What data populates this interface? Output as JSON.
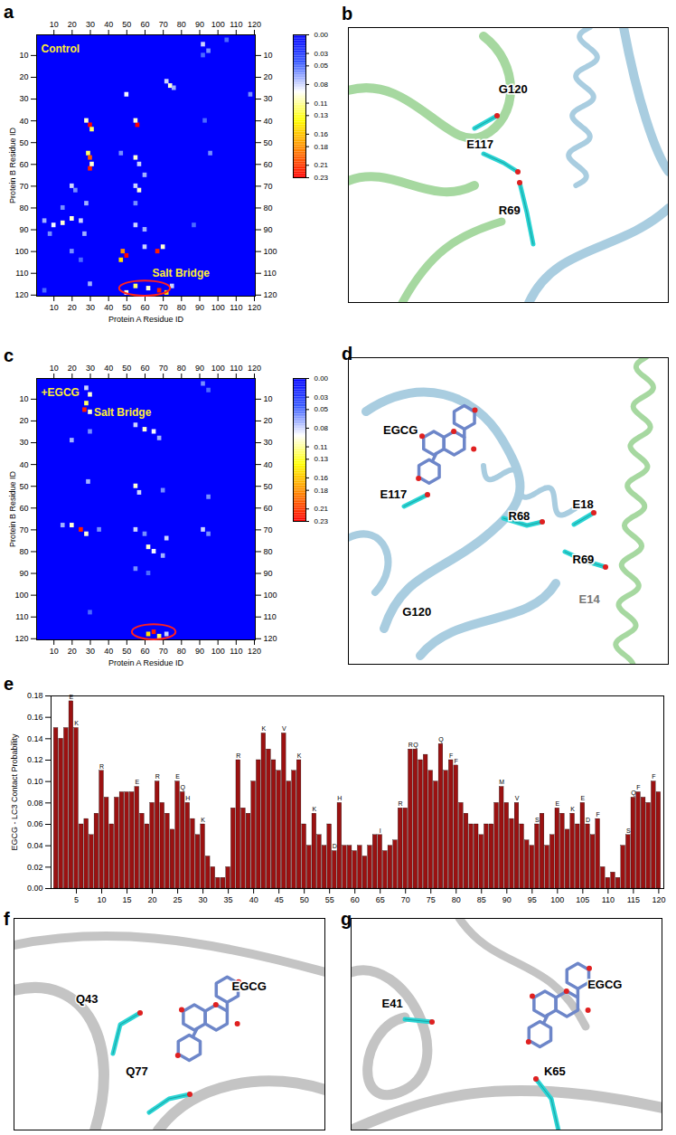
{
  "chart_data": [
    {
      "type": "heatmap",
      "panel": "a",
      "x_label": "Protein A Residue ID",
      "y_label": "Protein B Residue ID",
      "xlim": [
        0.5,
        120.5
      ],
      "ylim": [
        0.5,
        120.5
      ],
      "xticks": [
        10,
        20,
        30,
        40,
        50,
        60,
        70,
        80,
        90,
        100,
        110,
        120
      ],
      "yticks": [
        10,
        20,
        30,
        40,
        50,
        60,
        70,
        80,
        90,
        100,
        110,
        120
      ],
      "cells": [
        [
          92,
          5,
          0.08
        ],
        [
          95,
          8,
          0.06
        ],
        [
          92,
          10,
          0.05
        ],
        [
          105,
          3,
          0.05
        ],
        [
          50,
          28,
          0.09
        ],
        [
          72,
          22,
          0.08
        ],
        [
          74,
          24,
          0.1
        ],
        [
          76,
          25,
          0.07
        ],
        [
          118,
          28,
          0.06
        ],
        [
          30,
          42,
          0.23
        ],
        [
          28,
          40,
          0.1
        ],
        [
          31,
          44,
          0.12
        ],
        [
          56,
          42,
          0.23
        ],
        [
          55,
          40,
          0.1
        ],
        [
          93,
          40,
          0.05
        ],
        [
          29,
          55,
          0.12
        ],
        [
          30,
          57,
          0.2
        ],
        [
          30,
          62,
          0.22
        ],
        [
          31,
          60,
          0.1
        ],
        [
          47,
          55,
          0.06
        ],
        [
          55,
          57,
          0.1
        ],
        [
          57,
          60,
          0.08
        ],
        [
          96,
          55,
          0.06
        ],
        [
          60,
          65,
          0.07
        ],
        [
          20,
          70,
          0.08
        ],
        [
          22,
          72,
          0.06
        ],
        [
          55,
          70,
          0.08
        ],
        [
          57,
          72,
          0.1
        ],
        [
          28,
          78,
          0.07
        ],
        [
          55,
          78,
          0.06
        ],
        [
          15,
          80,
          0.06
        ],
        [
          5,
          86,
          0.07
        ],
        [
          10,
          88,
          0.09
        ],
        [
          15,
          87,
          0.1
        ],
        [
          20,
          85,
          0.1
        ],
        [
          25,
          86,
          0.08
        ],
        [
          8,
          92,
          0.06
        ],
        [
          27,
          92,
          0.07
        ],
        [
          55,
          88,
          0.08
        ],
        [
          60,
          90,
          0.07
        ],
        [
          87,
          88,
          0.05
        ],
        [
          48,
          100,
          0.18
        ],
        [
          50,
          102,
          0.23
        ],
        [
          47,
          104,
          0.15
        ],
        [
          60,
          98,
          0.08
        ],
        [
          67,
          100,
          0.22
        ],
        [
          70,
          98,
          0.1
        ],
        [
          20,
          100,
          0.06
        ],
        [
          25,
          104,
          0.05
        ],
        [
          55,
          116,
          0.12
        ],
        [
          62,
          117,
          0.1
        ],
        [
          68,
          118,
          0.22
        ],
        [
          72,
          119,
          0.15
        ],
        [
          50,
          119,
          0.1
        ],
        [
          75,
          116,
          0.08
        ],
        [
          30,
          115,
          0.07
        ],
        [
          5,
          118,
          0.05
        ]
      ],
      "colorbar": {
        "range": [
          0,
          0.23
        ],
        "ticks": [
          {
            "value": 0,
            "label": "0.00"
          },
          0.03,
          0.05,
          0.08,
          0.11,
          0.13,
          0.16,
          0.18,
          0.21,
          0.23
        ],
        "colors": [
          "#0000ff",
          "#3a5cff",
          "#ffffff",
          "#ffff00",
          "#ff8800",
          "#ff0000"
        ]
      },
      "annotations": [
        {
          "text": "Control",
          "x": 3,
          "y": 7
        },
        {
          "text": "Salt Bridge",
          "x": 64,
          "y": 110
        }
      ],
      "highlights": [
        {
          "x": 60,
          "y": 117,
          "rx": 14,
          "ry": 3.5
        }
      ]
    },
    {
      "type": "heatmap",
      "panel": "c",
      "x_label": "Protein A Residue ID",
      "y_label": "Protein B Residue ID",
      "xlim": [
        0.5,
        120.5
      ],
      "ylim": [
        0.5,
        120.5
      ],
      "xticks": [
        10,
        20,
        30,
        40,
        50,
        60,
        70,
        80,
        90,
        100,
        110,
        120
      ],
      "yticks": [
        10,
        20,
        30,
        40,
        50,
        60,
        70,
        80,
        90,
        100,
        110,
        120
      ],
      "cells": [
        [
          28,
          5,
          0.08
        ],
        [
          30,
          8,
          0.1
        ],
        [
          28,
          12,
          0.12
        ],
        [
          27,
          15,
          0.22
        ],
        [
          30,
          16,
          0.1
        ],
        [
          92,
          3,
          0.06
        ],
        [
          95,
          6,
          0.05
        ],
        [
          55,
          22,
          0.08
        ],
        [
          60,
          24,
          0.1
        ],
        [
          65,
          25,
          0.09
        ],
        [
          68,
          28,
          0.07
        ],
        [
          30,
          25,
          0.06
        ],
        [
          20,
          29,
          0.07
        ],
        [
          29,
          48,
          0.07
        ],
        [
          55,
          50,
          0.1
        ],
        [
          57,
          53,
          0.08
        ],
        [
          95,
          55,
          0.06
        ],
        [
          70,
          52,
          0.06
        ],
        [
          15,
          68,
          0.07
        ],
        [
          20,
          68,
          0.1
        ],
        [
          25,
          70,
          0.22
        ],
        [
          28,
          72,
          0.1
        ],
        [
          35,
          70,
          0.06
        ],
        [
          55,
          70,
          0.08
        ],
        [
          60,
          72,
          0.06
        ],
        [
          72,
          74,
          0.08
        ],
        [
          62,
          78,
          0.1
        ],
        [
          65,
          80,
          0.09
        ],
        [
          70,
          82,
          0.07
        ],
        [
          92,
          70,
          0.08
        ],
        [
          95,
          72,
          0.06
        ],
        [
          55,
          88,
          0.06
        ],
        [
          62,
          90,
          0.05
        ],
        [
          30,
          108,
          0.05
        ],
        [
          62,
          118,
          0.15
        ],
        [
          65,
          117,
          0.22
        ],
        [
          68,
          119,
          0.12
        ],
        [
          72,
          118,
          0.08
        ]
      ],
      "colorbar": {
        "range": [
          0,
          0.23
        ],
        "ticks": [
          {
            "value": 0,
            "label": "0.00"
          },
          0.03,
          0.05,
          0.08,
          0.11,
          0.13,
          0.16,
          0.18,
          0.21,
          0.23
        ],
        "colors": [
          "#0000ff",
          "#3a5cff",
          "#ffffff",
          "#ffff00",
          "#ff8800",
          "#ff0000"
        ]
      },
      "annotations": [
        {
          "text": "+EGCG",
          "x": 3,
          "y": 7
        },
        {
          "text": "Salt Bridge",
          "x": 32,
          "y": 16
        }
      ],
      "highlights": [
        {
          "x": 65,
          "y": 117,
          "rx": 12,
          "ry": 3.5
        }
      ]
    },
    {
      "type": "bar",
      "panel": "e",
      "y_label": "EGCG - LC3 Contact Probability",
      "color": "#9b1111",
      "x": [
        1,
        2,
        3,
        4,
        5,
        6,
        7,
        8,
        9,
        10,
        11,
        12,
        13,
        14,
        15,
        16,
        17,
        18,
        19,
        20,
        21,
        22,
        23,
        24,
        25,
        26,
        27,
        28,
        29,
        30,
        31,
        32,
        33,
        34,
        35,
        36,
        37,
        38,
        39,
        40,
        41,
        42,
        43,
        44,
        45,
        46,
        47,
        48,
        49,
        50,
        51,
        52,
        53,
        54,
        55,
        56,
        57,
        58,
        59,
        60,
        61,
        62,
        63,
        64,
        65,
        66,
        67,
        68,
        69,
        70,
        71,
        72,
        73,
        74,
        75,
        76,
        77,
        78,
        79,
        80,
        81,
        82,
        83,
        84,
        85,
        86,
        87,
        88,
        89,
        90,
        91,
        92,
        93,
        94,
        95,
        96,
        97,
        98,
        99,
        100,
        101,
        102,
        103,
        104,
        105,
        106,
        107,
        108,
        109,
        110,
        111,
        112,
        113,
        114,
        115,
        116,
        117,
        118,
        119,
        120
      ],
      "values": [
        0.15,
        0.14,
        0.15,
        0.175,
        0.15,
        0.06,
        0.065,
        0.05,
        0.07,
        0.11,
        0.085,
        0.06,
        0.085,
        0.09,
        0.09,
        0.09,
        0.095,
        0.07,
        0.06,
        0.08,
        0.1,
        0.08,
        0.07,
        0.055,
        0.1,
        0.09,
        0.08,
        0.065,
        0.05,
        0.06,
        0.03,
        0.02,
        0.01,
        0.01,
        0.02,
        0.075,
        0.12,
        0.075,
        0.07,
        0.1,
        0.12,
        0.145,
        0.13,
        0.12,
        0.11,
        0.145,
        0.1,
        0.11,
        0.12,
        0.06,
        0.04,
        0.07,
        0.05,
        0.04,
        0.06,
        0.035,
        0.08,
        0.04,
        0.04,
        0.035,
        0.04,
        0.03,
        0.04,
        0.05,
        0.05,
        0.035,
        0.04,
        0.045,
        0.075,
        0.075,
        0.13,
        0.13,
        0.12,
        0.125,
        0.11,
        0.1,
        0.135,
        0.11,
        0.12,
        0.115,
        0.08,
        0.07,
        0.06,
        0.06,
        0.05,
        0.06,
        0.06,
        0.08,
        0.095,
        0.08,
        0.065,
        0.08,
        0.06,
        0.045,
        0.04,
        0.06,
        0.07,
        0.04,
        0.05,
        0.075,
        0.07,
        0.055,
        0.07,
        0.06,
        0.08,
        0.06,
        0.05,
        0.065,
        0.02,
        0.01,
        0.015,
        0.01,
        0.04,
        0.05,
        0.085,
        0.09,
        0.085,
        0.08,
        0.1,
        0.09
      ],
      "residue_labels": [
        {
          "x": 4,
          "label": "E"
        },
        {
          "x": 5,
          "label": "K"
        },
        {
          "x": 10,
          "label": "R"
        },
        {
          "x": 17,
          "label": "E"
        },
        {
          "x": 21,
          "label": "R"
        },
        {
          "x": 25,
          "label": "E"
        },
        {
          "x": 26,
          "label": "Q"
        },
        {
          "x": 27,
          "label": "H"
        },
        {
          "x": 30,
          "label": "K"
        },
        {
          "x": 37,
          "label": "R"
        },
        {
          "x": 42,
          "label": "K"
        },
        {
          "x": 46,
          "label": "V"
        },
        {
          "x": 49,
          "label": "K"
        },
        {
          "x": 52,
          "label": "K"
        },
        {
          "x": 56,
          "label": "D"
        },
        {
          "x": 57,
          "label": "H"
        },
        {
          "x": 65,
          "label": "I"
        },
        {
          "x": 69,
          "label": "R"
        },
        {
          "x": 71,
          "label": "R"
        },
        {
          "x": 72,
          "label": "Q"
        },
        {
          "x": 77,
          "label": "Q"
        },
        {
          "x": 79,
          "label": "F"
        },
        {
          "x": 80,
          "label": "F"
        },
        {
          "x": 89,
          "label": "M"
        },
        {
          "x": 92,
          "label": "V"
        },
        {
          "x": 96,
          "label": "S"
        },
        {
          "x": 100,
          "label": "E"
        },
        {
          "x": 103,
          "label": "K"
        },
        {
          "x": 105,
          "label": "E"
        },
        {
          "x": 106,
          "label": "D"
        },
        {
          "x": 108,
          "label": "F"
        },
        {
          "x": 114,
          "label": "S"
        },
        {
          "x": 115,
          "label": "Q"
        },
        {
          "x": 116,
          "label": "F"
        },
        {
          "x": 119,
          "label": "F"
        }
      ],
      "xlim": [
        0,
        121
      ],
      "xticks": [
        5,
        10,
        15,
        20,
        25,
        30,
        35,
        40,
        45,
        50,
        55,
        60,
        65,
        70,
        75,
        80,
        85,
        90,
        95,
        100,
        105,
        110,
        115,
        120
      ],
      "ylim": [
        0,
        0.18
      ],
      "yticks": [
        {
          "value": 0,
          "label": "0.00"
        },
        0.02,
        0.04,
        0.06,
        0.08,
        {
          "value": 0.1,
          "label": "0.10"
        },
        0.12,
        0.14,
        0.16,
        0.18
      ]
    }
  ],
  "diagrams": [
    {
      "panel": "b",
      "labels": [
        "G120",
        "E117",
        "R69"
      ]
    },
    {
      "panel": "d",
      "labels": [
        "EGCG",
        "E117",
        "R68",
        "E18",
        "R69",
        "G120",
        "E14"
      ]
    },
    {
      "panel": "f",
      "labels": [
        "Q43",
        "EGCG",
        "Q77"
      ]
    },
    {
      "panel": "g",
      "labels": [
        "EGCG",
        "E41",
        "K65"
      ]
    }
  ]
}
